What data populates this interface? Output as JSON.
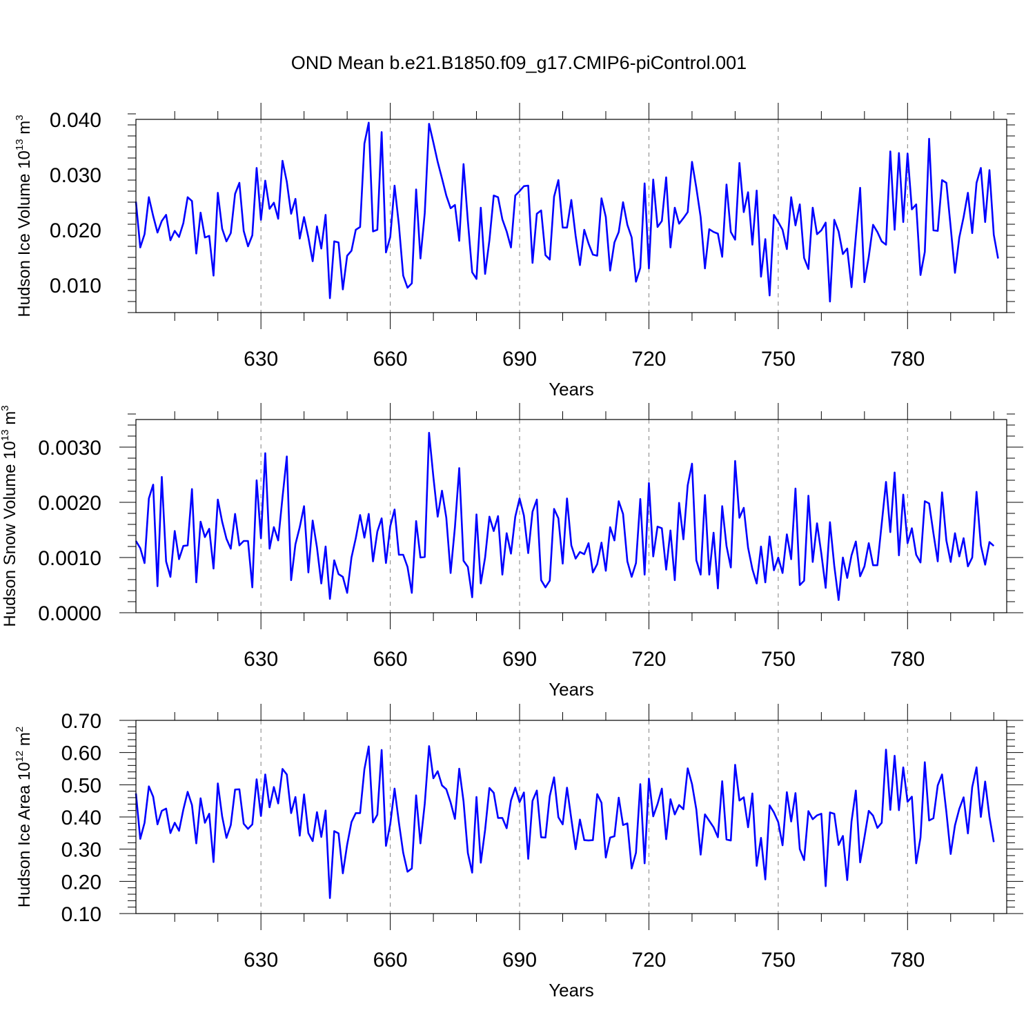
{
  "title": "OND Mean b.e21.B1850.f09_g17.CMIP6-piControl.001",
  "colors": {
    "line": "#0000ff",
    "axis": "#000000",
    "grid": "#808080"
  },
  "chart_data": [
    {
      "type": "line",
      "name": "ice-volume",
      "ylabel": "Hudson Ice Volume 10",
      "ylabel_exp": "13",
      "ylabel_unit": " m",
      "ylabel_unit_exp": "3",
      "xlabel": "Years",
      "xlim": [
        601,
        803
      ],
      "ylim": [
        0.005,
        0.04
      ],
      "yticks": [
        0.01,
        0.02,
        0.03,
        0.04
      ],
      "ytick_labels": [
        "0.010",
        "0.020",
        "0.030",
        "0.040"
      ],
      "xticks": [
        630,
        660,
        690,
        720,
        750,
        780
      ],
      "xtick_labels": [
        "630",
        "660",
        "690",
        "720",
        "750",
        "780"
      ],
      "grid_x": [
        630,
        660,
        690,
        720,
        750,
        780
      ],
      "x_start": 601,
      "values": [
        0.0251,
        0.0168,
        0.0192,
        0.0259,
        0.0225,
        0.0195,
        0.0216,
        0.0227,
        0.0181,
        0.0198,
        0.0187,
        0.0212,
        0.0259,
        0.0252,
        0.0157,
        0.0231,
        0.0186,
        0.0189,
        0.0117,
        0.0267,
        0.0202,
        0.0179,
        0.0194,
        0.0265,
        0.0285,
        0.0198,
        0.017,
        0.019,
        0.0312,
        0.0218,
        0.0289,
        0.0238,
        0.0249,
        0.022,
        0.0325,
        0.0287,
        0.0229,
        0.0256,
        0.0184,
        0.0223,
        0.0186,
        0.0143,
        0.0206,
        0.0166,
        0.0227,
        0.0076,
        0.0179,
        0.0177,
        0.0092,
        0.0153,
        0.0162,
        0.02,
        0.0205,
        0.0356,
        0.0394,
        0.0197,
        0.02,
        0.0377,
        0.0159,
        0.0187,
        0.028,
        0.0209,
        0.0117,
        0.0095,
        0.0103,
        0.0273,
        0.0148,
        0.023,
        0.0392,
        0.0358,
        0.0323,
        0.0293,
        0.0262,
        0.0239,
        0.0245,
        0.018,
        0.0319,
        0.0216,
        0.0123,
        0.0111,
        0.024,
        0.012,
        0.0181,
        0.0262,
        0.0259,
        0.0219,
        0.0197,
        0.0168,
        0.0262,
        0.027,
        0.0279,
        0.028,
        0.014,
        0.0229,
        0.0235,
        0.0154,
        0.0146,
        0.026,
        0.029,
        0.0204,
        0.0204,
        0.0254,
        0.0189,
        0.0136,
        0.02,
        0.0175,
        0.0155,
        0.0153,
        0.0257,
        0.0223,
        0.0126,
        0.0177,
        0.0196,
        0.025,
        0.0209,
        0.0186,
        0.0106,
        0.0131,
        0.0284,
        0.013,
        0.0291,
        0.0205,
        0.0216,
        0.0295,
        0.0168,
        0.024,
        0.0211,
        0.0221,
        0.0232,
        0.0323,
        0.0276,
        0.0223,
        0.013,
        0.0201,
        0.0196,
        0.0193,
        0.0151,
        0.0282,
        0.0196,
        0.0182,
        0.0321,
        0.0232,
        0.0268,
        0.0173,
        0.0271,
        0.0115,
        0.0183,
        0.0081,
        0.0227,
        0.0214,
        0.02,
        0.0165,
        0.0259,
        0.0208,
        0.0246,
        0.0149,
        0.0129,
        0.024,
        0.0192,
        0.0199,
        0.0213,
        0.007,
        0.0218,
        0.0197,
        0.0156,
        0.0166,
        0.0096,
        0.0188,
        0.0276,
        0.0105,
        0.0151,
        0.0209,
        0.0196,
        0.0179,
        0.0173,
        0.0342,
        0.02,
        0.0339,
        0.0214,
        0.0338,
        0.0237,
        0.0246,
        0.0118,
        0.016,
        0.0365,
        0.0199,
        0.0198,
        0.029,
        0.0285,
        0.0205,
        0.0122,
        0.0186,
        0.0223,
        0.0267,
        0.0194,
        0.0285,
        0.0312,
        0.0214,
        0.0308,
        0.0191,
        0.0148
      ]
    },
    {
      "type": "line",
      "name": "snow-volume",
      "ylabel": "Hudson Snow Volume 10",
      "ylabel_exp": "13",
      "ylabel_unit": " m",
      "ylabel_unit_exp": "3",
      "xlabel": "Years",
      "xlim": [
        601,
        803
      ],
      "ylim": [
        0.0,
        0.0035
      ],
      "yticks": [
        0.0,
        0.001,
        0.002,
        0.003
      ],
      "ytick_labels": [
        "0.0000",
        "0.0010",
        "0.0020",
        "0.0030"
      ],
      "xticks": [
        630,
        660,
        690,
        720,
        750,
        780
      ],
      "xtick_labels": [
        "630",
        "660",
        "690",
        "720",
        "750",
        "780"
      ],
      "grid_x": [
        630,
        660,
        690,
        720,
        750,
        780
      ],
      "x_start": 601,
      "values": [
        0.0013,
        0.00117,
        0.0009,
        0.00207,
        0.00232,
        0.00048,
        0.00246,
        0.00093,
        0.00065,
        0.00148,
        0.00097,
        0.00121,
        0.00122,
        0.00224,
        0.00055,
        0.00165,
        0.00137,
        0.00152,
        0.0008,
        0.00205,
        0.00165,
        0.00134,
        0.00116,
        0.00179,
        0.00122,
        0.0013,
        0.0013,
        0.00046,
        0.0024,
        0.00135,
        0.00289,
        0.00116,
        0.00155,
        0.00131,
        0.00209,
        0.00283,
        0.00059,
        0.00124,
        0.00155,
        0.00193,
        0.00073,
        0.00167,
        0.00118,
        0.00053,
        0.0012,
        0.00025,
        0.00095,
        0.0007,
        0.00065,
        0.00036,
        0.001,
        0.00135,
        0.00177,
        0.00136,
        0.00179,
        0.00093,
        0.00147,
        0.00171,
        0.0009,
        0.00157,
        0.00187,
        0.00105,
        0.00105,
        0.00083,
        0.00036,
        0.00166,
        0.001,
        0.00101,
        0.00326,
        0.00246,
        0.00174,
        0.00221,
        0.00172,
        0.00072,
        0.00155,
        0.00262,
        0.00094,
        0.00083,
        0.00028,
        0.00178,
        0.00053,
        0.001,
        0.00174,
        0.00148,
        0.00175,
        0.00069,
        0.00144,
        0.00107,
        0.00174,
        0.00207,
        0.00176,
        0.00108,
        0.00183,
        0.00205,
        0.00059,
        0.00046,
        0.00058,
        0.00188,
        0.00171,
        0.00089,
        0.00207,
        0.00122,
        0.00098,
        0.0011,
        0.00106,
        0.00126,
        0.00073,
        0.00088,
        0.00127,
        0.00076,
        0.00155,
        0.00131,
        0.00202,
        0.00179,
        0.00093,
        0.00065,
        0.0009,
        0.00206,
        0.00069,
        0.00235,
        0.00102,
        0.00156,
        0.00153,
        0.00078,
        0.00149,
        0.00059,
        0.00199,
        0.00133,
        0.00231,
        0.0027,
        0.00095,
        0.00069,
        0.00213,
        0.00069,
        0.00145,
        0.00044,
        0.00193,
        0.00121,
        0.00082,
        0.00275,
        0.00172,
        0.0019,
        0.00118,
        0.00079,
        0.00053,
        0.0012,
        0.00055,
        0.00138,
        0.00077,
        0.001,
        0.00072,
        0.00142,
        0.00097,
        0.00225,
        0.0005,
        0.00058,
        0.00212,
        0.00092,
        0.00162,
        0.00107,
        0.00045,
        0.00164,
        0.00085,
        0.00023,
        0.001,
        0.00063,
        0.00104,
        0.00129,
        0.00066,
        0.00084,
        0.00126,
        0.00086,
        0.00086,
        0.00161,
        0.00237,
        0.00146,
        0.00254,
        0.00104,
        0.00214,
        0.00126,
        0.00153,
        0.00105,
        0.00091,
        0.00202,
        0.00198,
        0.00144,
        0.00093,
        0.00218,
        0.00131,
        0.00092,
        0.00144,
        0.00102,
        0.00135,
        0.00084,
        0.001,
        0.00219,
        0.00122,
        0.00087,
        0.00128,
        0.00121
      ]
    },
    {
      "type": "line",
      "name": "ice-area",
      "ylabel": "Hudson Ice Area 10",
      "ylabel_exp": "12",
      "ylabel_unit": " m",
      "ylabel_unit_exp": "2",
      "xlabel": "Years",
      "xlim": [
        601,
        803
      ],
      "ylim": [
        0.1,
        0.7
      ],
      "yticks": [
        0.1,
        0.2,
        0.3,
        0.4,
        0.5,
        0.6,
        0.7
      ],
      "ytick_labels": [
        "0.10",
        "0.20",
        "0.30",
        "0.40",
        "0.50",
        "0.60",
        "0.70"
      ],
      "xticks": [
        630,
        660,
        690,
        720,
        750,
        780
      ],
      "xtick_labels": [
        "630",
        "660",
        "690",
        "720",
        "750",
        "780"
      ],
      "grid_x": [
        630,
        660,
        690,
        720,
        750,
        780
      ],
      "x_start": 601,
      "values": [
        0.473,
        0.332,
        0.382,
        0.495,
        0.463,
        0.377,
        0.419,
        0.426,
        0.35,
        0.382,
        0.357,
        0.423,
        0.478,
        0.437,
        0.318,
        0.458,
        0.382,
        0.41,
        0.26,
        0.504,
        0.402,
        0.335,
        0.375,
        0.485,
        0.486,
        0.379,
        0.363,
        0.377,
        0.517,
        0.403,
        0.532,
        0.43,
        0.493,
        0.442,
        0.549,
        0.532,
        0.412,
        0.462,
        0.342,
        0.47,
        0.35,
        0.325,
        0.415,
        0.338,
        0.42,
        0.148,
        0.356,
        0.349,
        0.225,
        0.314,
        0.384,
        0.412,
        0.412,
        0.548,
        0.619,
        0.383,
        0.407,
        0.608,
        0.31,
        0.378,
        0.488,
        0.383,
        0.289,
        0.23,
        0.24,
        0.467,
        0.318,
        0.441,
        0.62,
        0.52,
        0.542,
        0.498,
        0.486,
        0.445,
        0.394,
        0.55,
        0.448,
        0.288,
        0.227,
        0.462,
        0.258,
        0.36,
        0.49,
        0.475,
        0.397,
        0.397,
        0.365,
        0.451,
        0.491,
        0.446,
        0.476,
        0.27,
        0.45,
        0.482,
        0.337,
        0.336,
        0.465,
        0.523,
        0.399,
        0.377,
        0.491,
        0.394,
        0.3,
        0.392,
        0.328,
        0.327,
        0.328,
        0.471,
        0.444,
        0.274,
        0.336,
        0.34,
        0.46,
        0.375,
        0.38,
        0.24,
        0.289,
        0.502,
        0.256,
        0.519,
        0.402,
        0.44,
        0.488,
        0.331,
        0.455,
        0.408,
        0.437,
        0.424,
        0.551,
        0.502,
        0.423,
        0.283,
        0.408,
        0.388,
        0.368,
        0.337,
        0.511,
        0.33,
        0.327,
        0.562,
        0.451,
        0.461,
        0.368,
        0.473,
        0.248,
        0.335,
        0.206,
        0.436,
        0.414,
        0.384,
        0.312,
        0.477,
        0.386,
        0.474,
        0.3,
        0.266,
        0.418,
        0.393,
        0.405,
        0.41,
        0.185,
        0.414,
        0.41,
        0.313,
        0.341,
        0.204,
        0.386,
        0.482,
        0.259,
        0.337,
        0.419,
        0.404,
        0.366,
        0.382,
        0.609,
        0.422,
        0.59,
        0.421,
        0.554,
        0.447,
        0.463,
        0.256,
        0.336,
        0.57,
        0.389,
        0.396,
        0.498,
        0.532,
        0.416,
        0.285,
        0.374,
        0.425,
        0.461,
        0.349,
        0.493,
        0.554,
        0.4,
        0.51,
        0.4,
        0.322
      ]
    }
  ]
}
